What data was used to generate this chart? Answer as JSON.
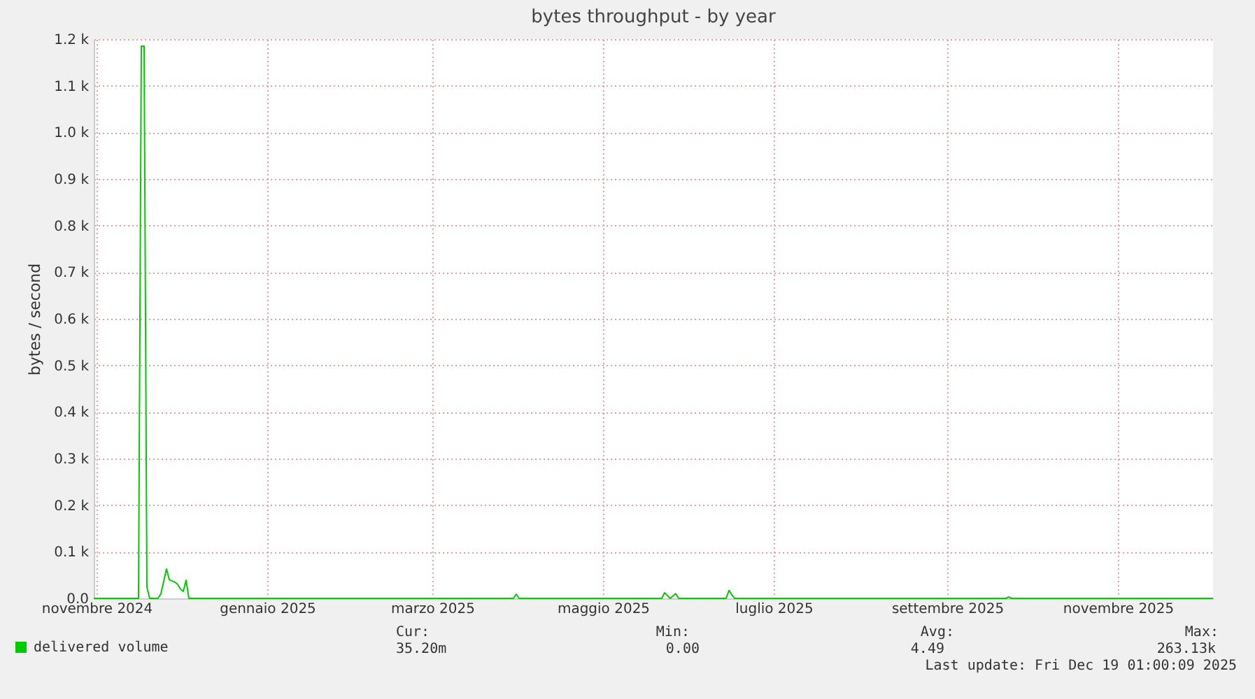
{
  "chart_data": {
    "type": "line",
    "title": "bytes throughput - by year",
    "ylabel": "bytes / second",
    "x": [
      "2024-11-14",
      "2024-11-30",
      "2024-12-01",
      "2024-12-02",
      "2024-12-03",
      "2024-12-04",
      "2024-12-07",
      "2024-12-08",
      "2024-12-10",
      "2024-12-11",
      "2024-12-13",
      "2024-12-14",
      "2024-12-15",
      "2024-12-16",
      "2024-12-17",
      "2024-12-18",
      "2025-04-13",
      "2025-04-14",
      "2025-04-15",
      "2025-06-05",
      "2025-06-06",
      "2025-06-08",
      "2025-06-10",
      "2025-06-11",
      "2025-06-28",
      "2025-06-29",
      "2025-06-30",
      "2025-07-01",
      "2025-10-06",
      "2025-10-07",
      "2025-10-08",
      "2025-12-19"
    ],
    "series": [
      {
        "name": "delivered volume",
        "color": "#00cc00",
        "values": [
          0,
          0,
          1185,
          1185,
          24,
          0,
          0,
          10,
          63,
          40,
          35,
          30,
          20,
          15,
          39,
          0,
          0,
          9,
          0,
          0,
          12,
          0,
          10,
          0,
          0,
          17,
          8,
          0,
          0,
          3,
          0,
          0
        ]
      }
    ],
    "xlim": [
      "2024-11-14",
      "2025-12-19"
    ],
    "xticks": [
      {
        "value": "2024-11-15",
        "label": "novembre 2024"
      },
      {
        "value": "2025-01-15",
        "label": "gennaio 2025"
      },
      {
        "value": "2025-03-15",
        "label": "marzo 2025"
      },
      {
        "value": "2025-05-15",
        "label": "maggio 2025"
      },
      {
        "value": "2025-07-15",
        "label": "luglio 2025"
      },
      {
        "value": "2025-09-15",
        "label": "settembre 2025"
      },
      {
        "value": "2025-11-15",
        "label": "novembre 2025"
      }
    ],
    "ylim": [
      0,
      1200
    ],
    "yticks": [
      {
        "value": 0,
        "label": "0.0"
      },
      {
        "value": 100,
        "label": "0.1 k"
      },
      {
        "value": 200,
        "label": "0.2 k"
      },
      {
        "value": 300,
        "label": "0.3 k"
      },
      {
        "value": 400,
        "label": "0.4 k"
      },
      {
        "value": 500,
        "label": "0.5 k"
      },
      {
        "value": 600,
        "label": "0.6 k"
      },
      {
        "value": 700,
        "label": "0.7 k"
      },
      {
        "value": 800,
        "label": "0.8 k"
      },
      {
        "value": 900,
        "label": "0.9 k"
      },
      {
        "value": 1000,
        "label": "1.0 k"
      },
      {
        "value": 1100,
        "label": "1.1 k"
      },
      {
        "value": 1200,
        "label": "1.2 k"
      }
    ],
    "grid": true,
    "legend": "bottom left",
    "annotations": [
      "Cur:",
      "35.20m",
      "Min:",
      "0.00",
      "Avg:",
      "4.49",
      "Max:",
      "263.13k",
      "Last update: Fri Dec 19 01:00:09 2025"
    ]
  }
}
